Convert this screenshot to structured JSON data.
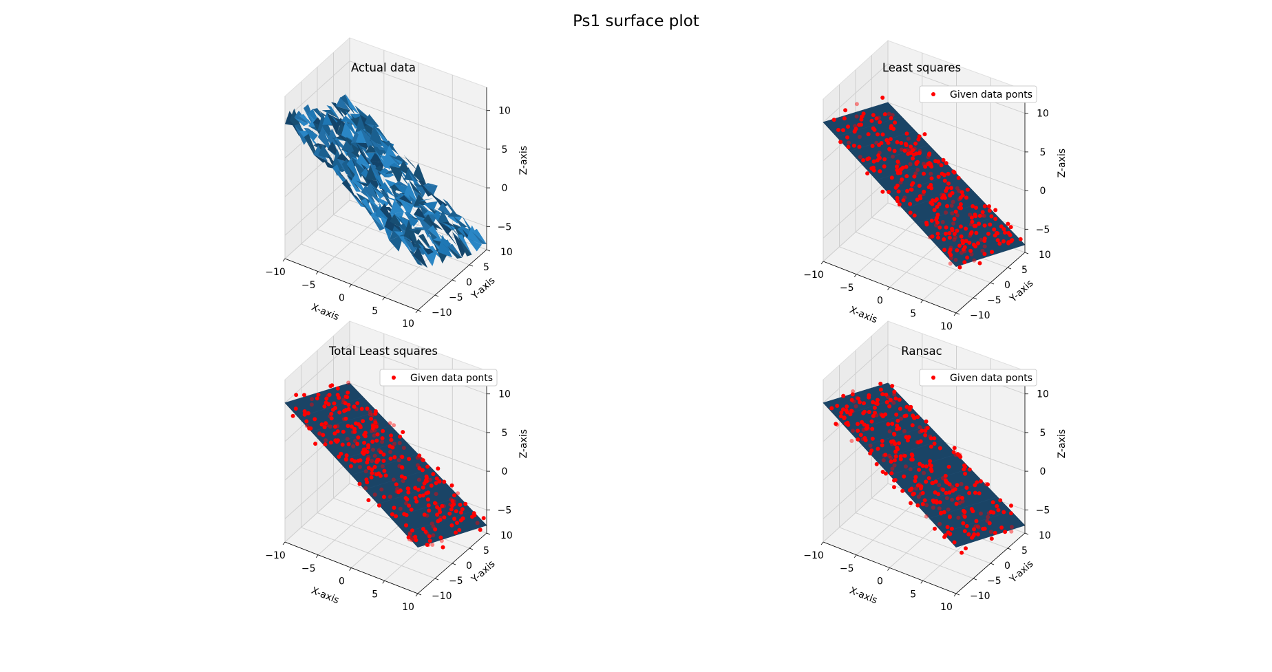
{
  "figure": {
    "title": "Ps1 surface plot"
  },
  "chart_data": [
    {
      "type": "surface",
      "title": "Actual data",
      "xlabel": "X-axis",
      "ylabel": "Y-axis",
      "zlabel": "Z-axis",
      "xlim": [
        -10,
        10
      ],
      "ylim": [
        -10,
        10
      ],
      "zlim": [
        -8,
        13
      ],
      "xticks": [
        -10,
        -5,
        0,
        5,
        10
      ],
      "yticks": [
        -10,
        -5,
        0,
        5,
        10
      ],
      "zticks": [
        -5,
        0,
        5,
        10
      ],
      "grid": true,
      "surface": {
        "kind": "triangulated-data",
        "color": "#1f77b4",
        "plane": {
          "a": -0.6,
          "b": -0.25,
          "c": 1.5
        }
      },
      "series": []
    },
    {
      "type": "surface",
      "title": "Least squares",
      "xlabel": "X-axis",
      "ylabel": "Y-axis",
      "zlabel": "Z-axis",
      "xlim": [
        -10,
        10
      ],
      "ylim": [
        -10,
        10
      ],
      "zlim": [
        -8,
        13
      ],
      "xticks": [
        -10,
        -5,
        0,
        5,
        10
      ],
      "yticks": [
        -10,
        -5,
        0,
        5,
        10
      ],
      "zticks": [
        -5,
        0,
        5,
        10
      ],
      "grid": true,
      "surface": {
        "kind": "fitted-plane",
        "color": "#1a4466",
        "plane": {
          "a": -0.6,
          "b": -0.25,
          "c": 1.5
        }
      },
      "series": [
        {
          "name": "Given data ponts",
          "type": "scatter",
          "color": "#ff0000"
        }
      ],
      "legend": {
        "placement": "top-right"
      }
    },
    {
      "type": "surface",
      "title": "Total Least squares",
      "xlabel": "X-axis",
      "ylabel": "Y-axis",
      "zlabel": "Z-axis",
      "xlim": [
        -10,
        10
      ],
      "ylim": [
        -10,
        10
      ],
      "zlim": [
        -8,
        13
      ],
      "xticks": [
        -10,
        -5,
        0,
        5,
        10
      ],
      "yticks": [
        -10,
        -5,
        0,
        5,
        10
      ],
      "zticks": [
        -5,
        0,
        5,
        10
      ],
      "grid": true,
      "surface": {
        "kind": "fitted-plane",
        "color": "#1a4466",
        "plane": {
          "a": -0.6,
          "b": -0.25,
          "c": 1.5
        }
      },
      "series": [
        {
          "name": "Given data ponts",
          "type": "scatter",
          "color": "#ff0000"
        }
      ],
      "legend": {
        "placement": "top-right"
      }
    },
    {
      "type": "surface",
      "title": "Ransac",
      "xlabel": "X-axis",
      "ylabel": "Y-axis",
      "zlabel": "Z-axis",
      "xlim": [
        -10,
        10
      ],
      "ylim": [
        -10,
        10
      ],
      "zlim": [
        -8,
        13
      ],
      "xticks": [
        -10,
        -5,
        0,
        5,
        10
      ],
      "yticks": [
        -10,
        -5,
        0,
        5,
        10
      ],
      "zticks": [
        -5,
        0,
        5,
        10
      ],
      "grid": true,
      "surface": {
        "kind": "fitted-plane",
        "color": "#1a4466",
        "plane": {
          "a": -0.6,
          "b": -0.25,
          "c": 1.5
        }
      },
      "series": [
        {
          "name": "Given data ponts",
          "type": "scatter",
          "color": "#ff0000"
        }
      ],
      "legend": {
        "placement": "top-right"
      }
    }
  ]
}
